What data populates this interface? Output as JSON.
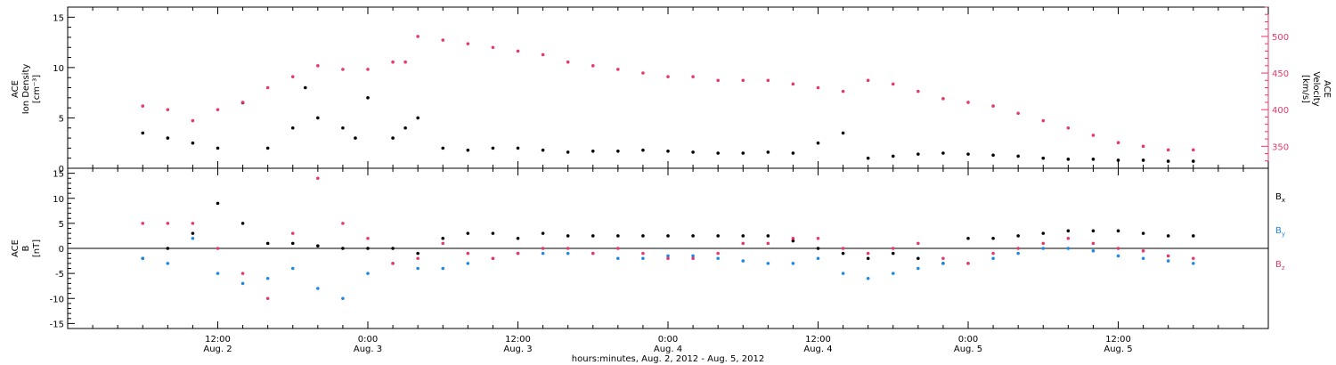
{
  "chart_data": [
    {
      "type": "scatter",
      "panel": "top",
      "ylabel_left": [
        "ACE",
        "Ion Density",
        "[cm⁻³]"
      ],
      "ylabel_right": [
        "ACE",
        "Velocity",
        "[km/s]"
      ],
      "ylim_left": [
        0,
        16
      ],
      "yticks_left": [
        0,
        5,
        10,
        15
      ],
      "ylim_right": [
        320,
        540
      ],
      "yticks_right": [
        350,
        400,
        450,
        500
      ],
      "right_axis_color": "#e8386a",
      "series": [
        {
          "name": "Ion Density",
          "axis": "left",
          "color": "#000000",
          "x_hours": [
            0,
            2,
            4,
            6,
            8,
            10,
            12,
            13,
            14,
            16,
            17,
            18,
            20,
            21,
            22,
            24,
            26,
            28,
            30,
            32,
            34,
            36,
            38,
            40,
            42,
            44,
            46,
            48,
            50,
            52,
            54,
            56,
            58,
            60,
            62,
            64,
            66,
            68,
            70,
            72,
            74,
            76,
            78,
            80,
            82,
            84
          ],
          "y": [
            3.5,
            3.0,
            2.5,
            2.0,
            6.5,
            2.0,
            4.0,
            8.0,
            5.0,
            4.0,
            3.0,
            7.0,
            3.0,
            4.0,
            5.0,
            2.0,
            1.8,
            2.0,
            2.0,
            1.8,
            1.6,
            1.7,
            1.7,
            1.8,
            1.7,
            1.6,
            1.5,
            1.5,
            1.6,
            1.5,
            2.5,
            3.5,
            1.0,
            1.2,
            1.4,
            1.5,
            1.4,
            1.3,
            1.2,
            1.0,
            0.9,
            0.9,
            0.8,
            0.8,
            0.7,
            0.7
          ]
        },
        {
          "name": "Velocity",
          "axis": "right",
          "color": "#e8386a",
          "x_hours": [
            0,
            2,
            4,
            6,
            8,
            10,
            12,
            14,
            16,
            18,
            20,
            21,
            22,
            24,
            26,
            28,
            30,
            32,
            34,
            36,
            38,
            40,
            42,
            44,
            46,
            48,
            50,
            52,
            54,
            56,
            58,
            60,
            62,
            64,
            66,
            68,
            70,
            72,
            74,
            76,
            78,
            80,
            82,
            84
          ],
          "y": [
            405,
            400,
            385,
            400,
            410,
            430,
            445,
            460,
            455,
            455,
            465,
            465,
            500,
            495,
            490,
            485,
            480,
            475,
            465,
            460,
            455,
            450,
            445,
            445,
            440,
            440,
            440,
            435,
            430,
            425,
            440,
            435,
            425,
            415,
            410,
            405,
            395,
            385,
            375,
            365,
            355,
            350,
            345,
            345
          ]
        }
      ]
    },
    {
      "type": "scatter",
      "panel": "bottom",
      "ylabel_left": [
        "ACE",
        "B",
        "[nT]"
      ],
      "ylim": [
        -16,
        16
      ],
      "yticks": [
        -15,
        -10,
        -5,
        0,
        5,
        10,
        15
      ],
      "zero_line": true,
      "legend_placement": "right",
      "series": [
        {
          "name": "Bx",
          "label_main": "B",
          "label_sub": "x",
          "color": "#000000",
          "x_hours": [
            0,
            2,
            4,
            6,
            8,
            10,
            12,
            14,
            16,
            18,
            20,
            22,
            24,
            26,
            28,
            30,
            32,
            34,
            36,
            38,
            40,
            42,
            44,
            46,
            48,
            50,
            52,
            54,
            56,
            58,
            60,
            62,
            64,
            66,
            68,
            70,
            72,
            74,
            76,
            78,
            80,
            82,
            84
          ],
          "y": [
            -2,
            0,
            3,
            9,
            5,
            1,
            1,
            0.5,
            0,
            0,
            0,
            -1,
            2,
            3,
            3,
            2,
            3,
            2.5,
            2.5,
            2.5,
            2.5,
            2.5,
            2.5,
            2.5,
            2.5,
            2.5,
            1.5,
            0,
            -1,
            -2,
            -1,
            -2,
            -3,
            2,
            2,
            2.5,
            3,
            3.5,
            3.5,
            3.5,
            3,
            2.5,
            2.5
          ]
        },
        {
          "name": "By",
          "label_main": "B",
          "label_sub": "y",
          "color": "#1e88e5",
          "x_hours": [
            0,
            2,
            4,
            6,
            8,
            10,
            12,
            14,
            16,
            18,
            20,
            22,
            24,
            26,
            28,
            30,
            32,
            34,
            36,
            38,
            40,
            42,
            44,
            46,
            48,
            50,
            52,
            54,
            56,
            58,
            60,
            62,
            64,
            66,
            68,
            70,
            72,
            74,
            76,
            78,
            80,
            82,
            84
          ],
          "y": [
            -2,
            -3,
            2,
            -5,
            -7,
            -6,
            -4,
            -8,
            -10,
            -5,
            -3,
            -4,
            -4,
            -3,
            -2,
            -1,
            -1,
            -1,
            -1,
            -2,
            -2,
            -1.5,
            -1.5,
            -2,
            -2.5,
            -3,
            -3,
            -2,
            -5,
            -6,
            -5,
            -4,
            -3,
            -3,
            -2,
            -1,
            0,
            0,
            -0.5,
            -1.5,
            -2,
            -2.5,
            -3
          ]
        },
        {
          "name": "Bz",
          "label_main": "B",
          "label_sub": "z",
          "color": "#e8386a",
          "x_hours": [
            0,
            2,
            4,
            6,
            8,
            10,
            12,
            14,
            16,
            18,
            20,
            22,
            24,
            26,
            28,
            30,
            32,
            34,
            36,
            38,
            40,
            42,
            44,
            46,
            48,
            50,
            52,
            54,
            56,
            58,
            60,
            62,
            64,
            66,
            68,
            70,
            72,
            74,
            76,
            78,
            80,
            82,
            84
          ],
          "y": [
            5,
            5,
            5,
            0,
            -5,
            -10,
            3,
            14,
            5,
            2,
            -3,
            -2,
            1,
            -1,
            -2,
            -1,
            0,
            0,
            -1,
            0,
            -1,
            -2,
            -2,
            -1,
            1,
            1,
            2,
            2,
            0,
            -1,
            0,
            1,
            -2,
            -3,
            -1,
            0,
            1,
            2,
            1,
            0,
            -0.5,
            -1.5,
            -2
          ]
        }
      ]
    }
  ],
  "x_axis": {
    "range_hours": [
      -6,
      90
    ],
    "ticks": [
      {
        "hour": 6,
        "time": "12:00",
        "date": "Aug. 2"
      },
      {
        "hour": 18,
        "time": "0:00",
        "date": "Aug. 3"
      },
      {
        "hour": 30,
        "time": "12:00",
        "date": "Aug. 3"
      },
      {
        "hour": 42,
        "time": "0:00",
        "date": "Aug. 4"
      },
      {
        "hour": 54,
        "time": "12:00",
        "date": "Aug. 4"
      },
      {
        "hour": 66,
        "time": "0:00",
        "date": "Aug. 5"
      },
      {
        "hour": 78,
        "time": "12:00",
        "date": "Aug. 5"
      }
    ],
    "label": "hours:minutes, Aug.  2, 2012 - Aug.  5, 2012"
  }
}
